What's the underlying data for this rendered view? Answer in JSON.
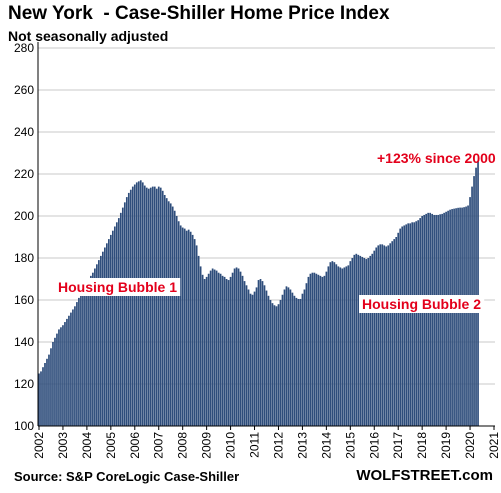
{
  "header": {
    "title": "New York  - Case-Shiller Home Price Index",
    "subtitle": "Not seasonally adjusted"
  },
  "footer": {
    "source": "Source: S&P CoreLogic Case-Shiller",
    "brand": "WOLFSTREET.com"
  },
  "colors": {
    "bar": "#2e4d7b",
    "annotation": "#e3001b",
    "grid": "#c8c8c8"
  },
  "chart_data": {
    "type": "bar",
    "title": "New York  - Case-Shiller Home Price Index",
    "subtitle": "Not seasonally adjusted",
    "xlabel": "",
    "ylabel": "",
    "ylim": [
      100,
      280
    ],
    "yticks": [
      100,
      120,
      140,
      160,
      180,
      200,
      220,
      240,
      260,
      280
    ],
    "xticks": [
      "2002",
      "2003",
      "2004",
      "2005",
      "2006",
      "2007",
      "2008",
      "2009",
      "2010",
      "2011",
      "2012",
      "2013",
      "2014",
      "2015",
      "2016",
      "2017",
      "2018",
      "2019",
      "2020",
      "2021"
    ],
    "grid": "horizontal",
    "frequency": "monthly",
    "start": "2002-01",
    "series": [
      {
        "values": [
          125.0,
          126.0,
          128.0,
          130.0,
          132.0,
          134.0,
          137.0,
          140.0,
          142.0,
          144.0,
          146.0,
          147.0,
          148.0,
          149.5,
          151.0,
          152.5,
          154.0,
          155.5,
          157.0,
          159.0,
          161.0,
          163.0,
          165.0,
          167.0,
          168.5,
          170.0,
          171.5,
          173.0,
          175.0,
          177.0,
          179.0,
          181.0,
          183.0,
          185.0,
          187.0,
          189.0,
          191.0,
          193.0,
          195.0,
          197.0,
          199.0,
          201.5,
          204.0,
          206.5,
          209.0,
          211.0,
          212.5,
          214.0,
          215.0,
          216.0,
          216.5,
          217.0,
          216.0,
          214.5,
          213.5,
          213.0,
          213.5,
          214.0,
          214.0,
          213.0,
          214.0,
          213.5,
          212.0,
          210.0,
          208.5,
          207.0,
          206.0,
          204.5,
          202.5,
          200.0,
          197.5,
          195.5,
          194.5,
          194.0,
          193.0,
          193.5,
          192.5,
          191.0,
          189.0,
          186.0,
          181.0,
          176.0,
          172.0,
          170.0,
          171.0,
          172.5,
          174.0,
          175.0,
          174.5,
          174.0,
          173.0,
          172.5,
          171.5,
          171.0,
          170.0,
          169.5,
          171.0,
          173.0,
          175.0,
          175.5,
          175.0,
          173.5,
          171.5,
          169.0,
          167.0,
          165.0,
          163.0,
          162.5,
          164.0,
          166.0,
          169.5,
          170.0,
          169.0,
          167.0,
          164.5,
          162.0,
          160.0,
          158.5,
          157.5,
          157.0,
          158.0,
          160.0,
          162.5,
          165.0,
          166.5,
          166.0,
          165.0,
          163.5,
          162.0,
          161.0,
          160.5,
          160.5,
          163.0,
          165.0,
          168.0,
          171.0,
          172.5,
          173.0,
          173.0,
          172.5,
          172.0,
          171.5,
          171.0,
          171.5,
          173.5,
          176.0,
          178.0,
          178.5,
          178.0,
          177.0,
          176.0,
          175.5,
          175.0,
          175.5,
          176.0,
          176.5,
          178.5,
          180.0,
          181.5,
          182.0,
          181.5,
          181.0,
          180.5,
          180.0,
          179.5,
          180.0,
          181.0,
          182.0,
          183.5,
          185.0,
          186.0,
          186.5,
          186.5,
          186.0,
          185.5,
          186.0,
          187.0,
          188.0,
          189.0,
          190.0,
          192.0,
          194.0,
          195.0,
          195.5,
          196.0,
          196.5,
          196.5,
          197.0,
          197.0,
          197.5,
          198.0,
          199.0,
          200.0,
          200.5,
          201.0,
          201.5,
          201.5,
          201.0,
          200.5,
          200.5,
          200.5,
          200.8,
          201.0,
          201.5,
          202.0,
          202.5,
          203.0,
          203.3,
          203.5,
          203.7,
          203.9,
          204.0,
          204.0,
          204.2,
          204.5,
          205.0,
          209.0,
          214.0,
          219.0,
          223.0,
          226.0
        ]
      }
    ],
    "annotations": [
      {
        "text": "+123% since 2000",
        "color": "#e3001b"
      },
      {
        "text": "Housing Bubble 1",
        "color": "#e3001b"
      },
      {
        "text": "Housing Bubble 2",
        "color": "#e3001b"
      }
    ]
  }
}
